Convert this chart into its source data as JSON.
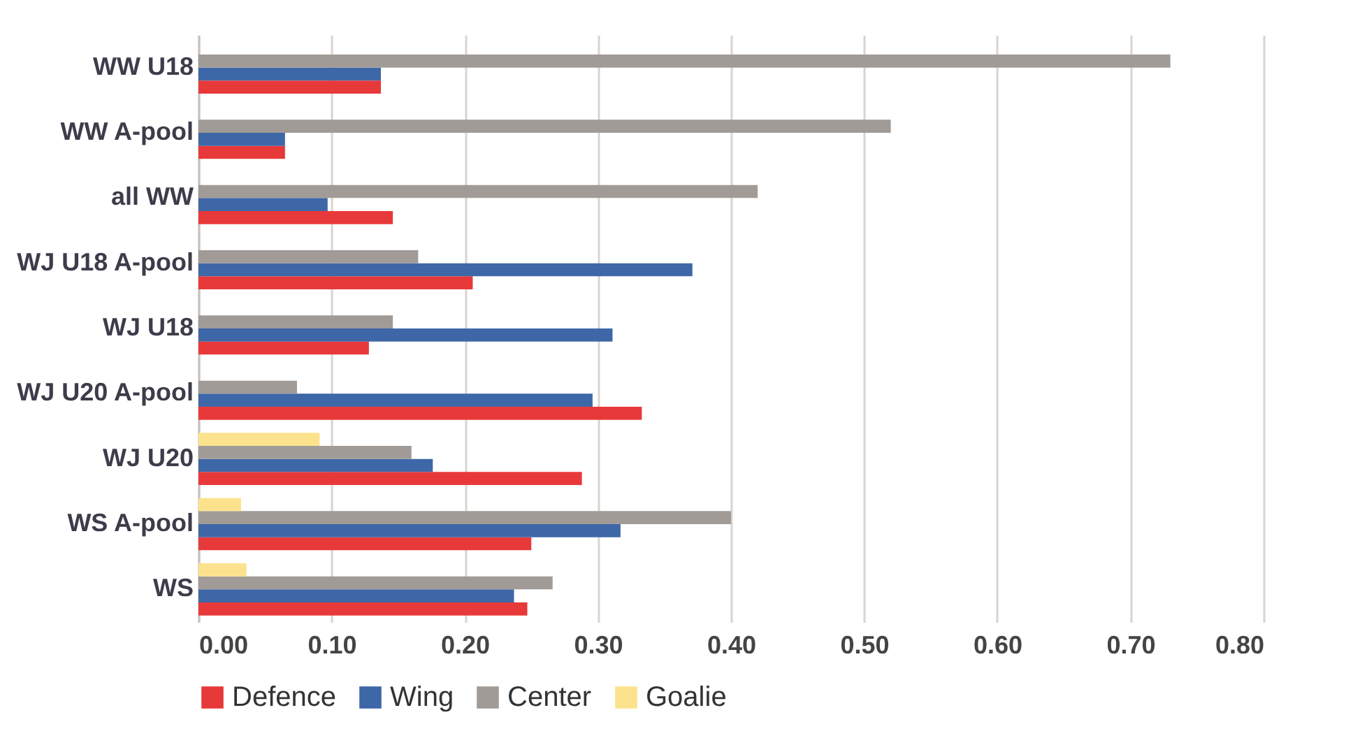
{
  "chart_data": {
    "type": "bar",
    "orientation": "horizontal",
    "categories": [
      "WW U18",
      "WW A-pool",
      "all WW",
      "WJ U18 A-pool",
      "WJ U18",
      "WJ U20 A-pool",
      "WJ U20",
      "WS A-pool",
      "WS"
    ],
    "series": [
      {
        "name": "Defence",
        "color": "#e8393a",
        "values": [
          0.137,
          0.065,
          0.146,
          0.206,
          0.128,
          0.333,
          0.288,
          0.25,
          0.247
        ]
      },
      {
        "name": "Wing",
        "color": "#3e67a8",
        "values": [
          0.137,
          0.065,
          0.097,
          0.371,
          0.311,
          0.296,
          0.176,
          0.317,
          0.237
        ]
      },
      {
        "name": "Center",
        "color": "#a19b97",
        "values": [
          0.73,
          0.52,
          0.42,
          0.165,
          0.146,
          0.074,
          0.16,
          0.4,
          0.266
        ]
      },
      {
        "name": "Goalie",
        "color": "#fde28e",
        "values": [
          null,
          null,
          null,
          null,
          null,
          null,
          0.091,
          0.032,
          0.036
        ]
      }
    ],
    "xlim": [
      0,
      0.8
    ],
    "xticks": [
      {
        "value": 0,
        "label": "0.00"
      },
      {
        "value": 0.1,
        "label": "0.10"
      },
      {
        "value": 0.2,
        "label": "0.20"
      },
      {
        "value": 0.3,
        "label": "0.30"
      },
      {
        "value": 0.4,
        "label": "0.40"
      },
      {
        "value": 0.5,
        "label": "0.50"
      },
      {
        "value": 0.6,
        "label": "0.60"
      },
      {
        "value": 0.7,
        "label": "0.70"
      },
      {
        "value": 0.8,
        "label": "0.80"
      }
    ],
    "grid": "x",
    "legend": "bottom"
  }
}
